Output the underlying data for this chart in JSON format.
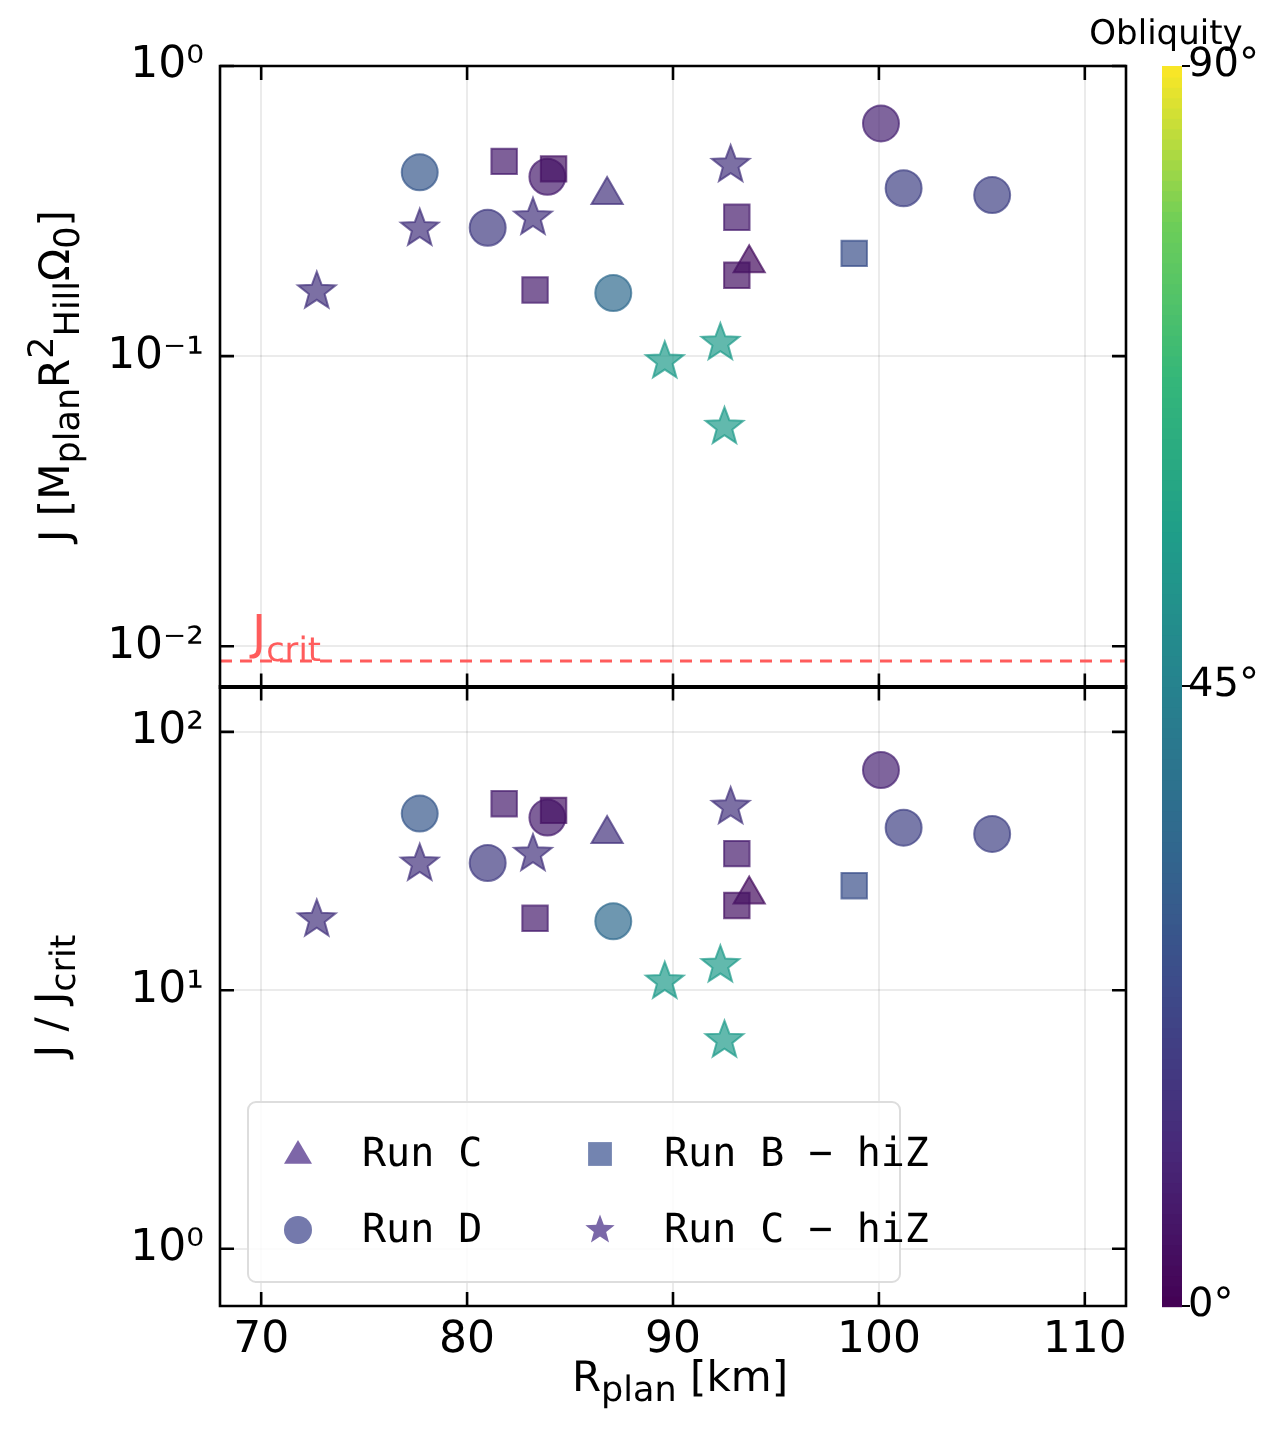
{
  "chart_data": [
    {
      "type": "scatter",
      "ylabel": "J [M$_{plan}$R$^{2}$$_{Hill}$Ω$_{0}$]",
      "clabel": "Obliquity",
      "clim": [
        0,
        90
      ],
      "cticks": [
        {
          "value": 0,
          "label": "0°"
        },
        {
          "value": 45,
          "label": "45°"
        },
        {
          "value": 90,
          "label": "90°"
        }
      ],
      "xlim": [
        68,
        112
      ],
      "xticks": [
        70,
        80,
        90,
        100,
        110
      ],
      "ylim": [
        0.0072,
        1.0
      ],
      "yticks": [
        {
          "value": 0.01,
          "label": "10⁻²"
        },
        {
          "value": 0.1,
          "label": "10⁻¹"
        },
        {
          "value": 1,
          "label": "10⁰"
        }
      ],
      "log": "y",
      "grid": true,
      "tick_labels": "y",
      "ref_lines": [
        {
          "axis": "y",
          "value": 0.0089,
          "label": "J$_{crit}$",
          "color": "#ff5c5c",
          "line_style": "dashed"
        }
      ],
      "series": [
        {
          "marker": "triangle",
          "x": [
            86.8,
            93.7
          ],
          "values": [
            0.359,
            0.209
          ],
          "cvalues": [
            15,
            3
          ],
          "colors": [
            "#45337e",
            "#450b5e"
          ]
        },
        {
          "marker": "circle",
          "x": [
            77.7,
            81.0,
            83.9,
            87.1,
            100.1,
            101.2,
            105.5
          ],
          "values": [
            0.43,
            0.277,
            0.415,
            0.165,
            0.634,
            0.379,
            0.359
          ],
          "cvalues": [
            28,
            18,
            8,
            35,
            10,
            20,
            20
          ],
          "colors": [
            "#38588b",
            "#423c82",
            "#471d6e",
            "#306b8e",
            "#482474",
            "#404285",
            "#404285"
          ]
        },
        {
          "marker": "square",
          "x": [
            81.8,
            84.2,
            83.3,
            93.1,
            93.1,
            98.8
          ],
          "values": [
            0.469,
            0.442,
            0.169,
            0.301,
            0.19,
            0.226
          ],
          "cvalues": [
            8,
            5,
            8,
            8,
            5,
            25
          ],
          "colors": [
            "#471d6e",
            "#461264",
            "#471d6e",
            "#471d6e",
            "#461264",
            "#3b508a"
          ]
        },
        {
          "marker": "star",
          "x": [
            72.7,
            77.7,
            83.2,
            92.8,
            89.6,
            92.3,
            92.5
          ],
          "values": [
            0.167,
            0.275,
            0.3,
            0.456,
            0.096,
            0.111,
            0.057
          ],
          "cvalues": [
            15,
            15,
            15,
            15,
            55,
            55,
            55
          ],
          "colors": [
            "#45337e",
            "#45337e",
            "#45337e",
            "#45337e",
            "#209b8a",
            "#209b8a",
            "#209b8a"
          ]
        }
      ]
    },
    {
      "type": "scatter",
      "xlabel": "R$_{plan}$ [km]",
      "ylabel": "J / J$_{crit}$",
      "xlim": [
        68,
        112
      ],
      "xticks": [
        70,
        80,
        90,
        100,
        110
      ],
      "ylim": [
        0.6,
        150
      ],
      "yticks": [
        {
          "value": 1,
          "label": "10⁰"
        },
        {
          "value": 10,
          "label": "10¹"
        },
        {
          "value": 100,
          "label": "10²"
        }
      ],
      "log": "y",
      "grid": true,
      "legend": "bottom left",
      "series": [
        {
          "name": "Run C",
          "marker": "triangle",
          "color": "#7d66a8",
          "x": [
            86.8,
            93.7
          ],
          "values": [
            40.3,
            23.5
          ],
          "colors": [
            "#45337e",
            "#450b5e"
          ]
        },
        {
          "name": "Run D",
          "marker": "circle",
          "color": "#7479ac",
          "x": [
            77.7,
            81.0,
            83.9,
            87.1,
            100.1,
            101.2,
            105.5
          ],
          "values": [
            48.3,
            31.1,
            46.6,
            18.5,
            71.2,
            42.6,
            40.3
          ],
          "colors": [
            "#38588b",
            "#423c82",
            "#471d6e",
            "#306b8e",
            "#482474",
            "#404285",
            "#404285"
          ]
        },
        {
          "name": "Run B − hiZ",
          "marker": "square",
          "color": "#7384b0",
          "x": [
            81.8,
            84.2,
            83.3,
            93.1,
            93.1,
            98.8
          ],
          "values": [
            52.7,
            49.7,
            19.0,
            33.8,
            21.3,
            25.4
          ],
          "colors": [
            "#471d6e",
            "#461264",
            "#471d6e",
            "#471d6e",
            "#461264",
            "#3b508a"
          ]
        },
        {
          "name": "Run C − hiZ",
          "marker": "star",
          "color": "#7a68a8",
          "x": [
            72.7,
            77.7,
            83.2,
            92.8,
            89.6,
            92.3,
            92.5
          ],
          "values": [
            18.8,
            30.9,
            33.7,
            51.2,
            10.8,
            12.5,
            6.4
          ],
          "colors": [
            "#45337e",
            "#45337e",
            "#45337e",
            "#45337e",
            "#209b8a",
            "#209b8a",
            "#209b8a"
          ]
        }
      ]
    }
  ]
}
